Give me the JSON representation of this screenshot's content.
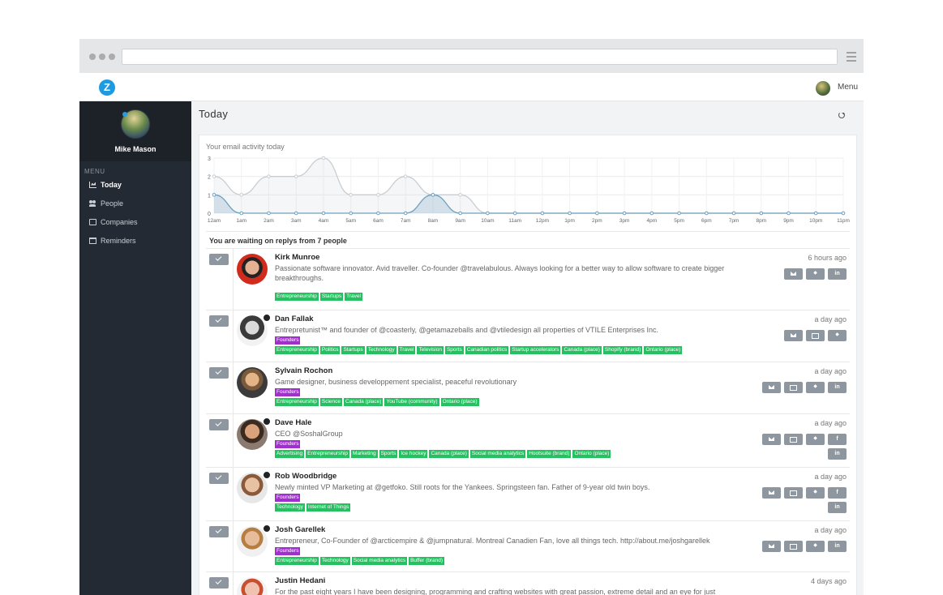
{
  "app": {
    "logo_letter": "Z",
    "menu_label": "Menu"
  },
  "sidebar": {
    "user_name": "Mike Mason",
    "menu_title": "MENU",
    "items": [
      {
        "label": "Today",
        "icon": "chart-icon",
        "active": true
      },
      {
        "label": "People",
        "icon": "people-icon",
        "active": false
      },
      {
        "label": "Companies",
        "icon": "briefcase-icon",
        "active": false
      },
      {
        "label": "Reminders",
        "icon": "calendar-icon",
        "active": false
      }
    ]
  },
  "main": {
    "title": "Today"
  },
  "chart_data": {
    "type": "area",
    "title": "Your email activity today",
    "categories": [
      "12am",
      "1am",
      "2am",
      "3am",
      "4am",
      "5am",
      "6am",
      "7am",
      "8am",
      "9am",
      "10am",
      "11am",
      "12pm",
      "1pm",
      "2pm",
      "3pm",
      "4pm",
      "5pm",
      "6pm",
      "7pm",
      "8pm",
      "9pm",
      "10pm",
      "11pm"
    ],
    "ylim": [
      0,
      3
    ],
    "yticks": [
      "0",
      "1",
      "2",
      "3"
    ],
    "series": [
      {
        "values": [
          2,
          1,
          2,
          2,
          3,
          1,
          1,
          2,
          1,
          1,
          0,
          0,
          0,
          0,
          0,
          0,
          0,
          0,
          0,
          0,
          0,
          0,
          0,
          0
        ],
        "color": "#c9cdd2"
      },
      {
        "values": [
          1,
          0,
          0,
          0,
          0,
          0,
          0,
          0,
          1,
          0,
          0,
          0,
          0,
          0,
          0,
          0,
          0,
          0,
          0,
          0,
          0,
          0,
          0,
          0
        ],
        "color": "#6fa0bf"
      }
    ],
    "grid": true
  },
  "waiting_text": "You are waiting on replys from 7 people",
  "people": [
    {
      "name": "Kirk Munroe",
      "bio": "Passionate software innovator. Avid traveller. Co-founder @travelabulous. Always looking for a better way to allow software to create bigger breakthroughs.",
      "time": "6 hours ago",
      "founders": false,
      "tags": [
        "Entrepreneurship",
        "Startups",
        "Travel"
      ],
      "actions": [
        "mail",
        "twitter",
        "linkedin"
      ],
      "avatar": "av-kirk",
      "badge": false
    },
    {
      "name": "Dan Fallak",
      "bio": "Entrepretunist™ and founder of @coasterly, @getamazeballs and @vtiledesign all properties of VTILE Enterprises Inc.",
      "time": "a day ago",
      "founders": true,
      "tags": [
        "Entrepreneurship",
        "Politics",
        "Startups",
        "Technology",
        "Travel",
        "Television",
        "Sports",
        "Canadian politics",
        "Startup accelerators",
        "Canada (place)",
        "Shopify (brand)",
        "Ontario (place)"
      ],
      "actions": [
        "mail",
        "brief",
        "twitter"
      ],
      "avatar": "av-dan",
      "badge": true
    },
    {
      "name": "Sylvain Rochon",
      "bio": "Game designer, business developpement specialist, peaceful revolutionary",
      "time": "a day ago",
      "founders": true,
      "tags": [
        "Entrepreneurship",
        "Science",
        "Canada (place)",
        "YouTube (community)",
        "Ontario (place)"
      ],
      "actions": [
        "mail",
        "brief",
        "twitter",
        "linkedin"
      ],
      "avatar": "av-sylvain",
      "badge": false
    },
    {
      "name": "Dave Hale",
      "bio": "CEO @SoshalGroup",
      "time": "a day ago",
      "founders": true,
      "tags": [
        "Advertising",
        "Entrepreneurship",
        "Marketing",
        "Sports",
        "Ice hockey",
        "Canada (place)",
        "Social media analytics",
        "Hootsuite (brand)",
        "Ontario (place)"
      ],
      "actions": [
        "mail",
        "brief",
        "twitter",
        "facebook",
        "linkedin"
      ],
      "avatar": "av-dave",
      "badge": true
    },
    {
      "name": "Rob Woodbridge",
      "bio": "Newly minted VP Marketing at @getfoko. Still roots for the Yankees. Springsteen fan. Father of 9-year old twin boys.",
      "time": "a day ago",
      "founders": true,
      "tags": [
        "Technology",
        "Internet of Things"
      ],
      "actions": [
        "mail",
        "brief",
        "twitter",
        "facebook",
        "linkedin"
      ],
      "avatar": "av-rob",
      "badge": true
    },
    {
      "name": "Josh Garellek",
      "bio": "Entrepreneur, Co-Founder of @arcticempire & @jumpnatural. Montreal Canadien Fan, love all things tech. http://about.me/joshgarellek",
      "time": "a day ago",
      "founders": true,
      "tags": [
        "Entrepreneurship",
        "Technology",
        "Social media analytics",
        "Buffer (brand)"
      ],
      "actions": [
        "mail",
        "brief",
        "twitter",
        "linkedin"
      ],
      "avatar": "av-josh",
      "badge": true
    },
    {
      "name": "Justin Hedani",
      "bio": "For the past eight years I have been designing, programming and crafting websites with great passion, extreme detail and an eye for just",
      "time": "4 days ago",
      "founders": false,
      "tags": [],
      "actions": [],
      "avatar": "av-justin",
      "badge": false
    }
  ],
  "labels": {
    "founders": "Founders"
  }
}
